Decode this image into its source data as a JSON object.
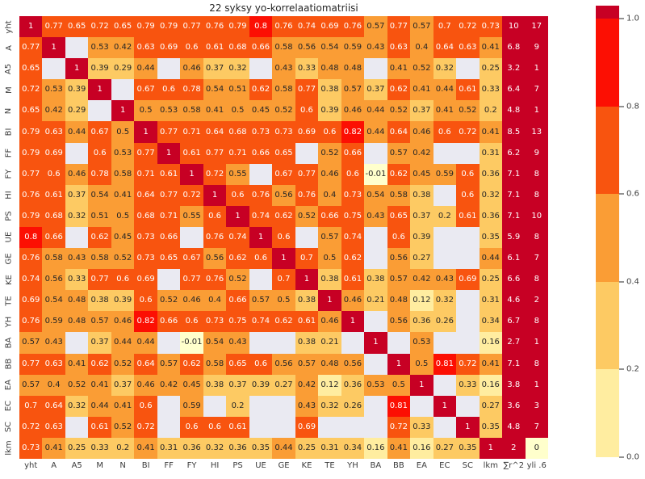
{
  "chart_data": {
    "type": "heatmap",
    "title": "22 syksy yo-korrelaatiomatriisi",
    "rows": [
      "yht",
      "A",
      "A5",
      "M",
      "N",
      "BI",
      "FF",
      "FY",
      "HI",
      "PS",
      "UE",
      "GE",
      "KE",
      "TE",
      "YH",
      "BA",
      "BB",
      "EA",
      "EC",
      "SC",
      "lkm"
    ],
    "columns": [
      "yht",
      "A",
      "A5",
      "M",
      "N",
      "BI",
      "FF",
      "FY",
      "HI",
      "PS",
      "UE",
      "GE",
      "KE",
      "TE",
      "YH",
      "BA",
      "BB",
      "EA",
      "EC",
      "SC",
      "lkm",
      "∑r^2",
      "yli .6"
    ],
    "matrix": [
      [
        1,
        0.77,
        0.65,
        0.72,
        0.65,
        0.79,
        0.79,
        0.77,
        0.76,
        0.79,
        0.8,
        0.76,
        0.74,
        0.69,
        0.76,
        0.57,
        0.77,
        0.57,
        0.7,
        0.72,
        0.73,
        10,
        17
      ],
      [
        0.77,
        1,
        null,
        0.53,
        0.42,
        0.63,
        0.69,
        0.6,
        0.61,
        0.68,
        0.66,
        0.58,
        0.56,
        0.54,
        0.59,
        0.43,
        0.63,
        0.4,
        0.64,
        0.63,
        0.41,
        6.8,
        9
      ],
      [
        0.65,
        null,
        1,
        0.39,
        0.29,
        0.44,
        null,
        0.46,
        0.37,
        0.32,
        null,
        0.43,
        0.33,
        0.48,
        0.48,
        null,
        0.41,
        0.52,
        0.32,
        null,
        0.25,
        3.2,
        1
      ],
      [
        0.72,
        0.53,
        0.39,
        1,
        null,
        0.67,
        0.6,
        0.78,
        0.54,
        0.51,
        0.62,
        0.58,
        0.77,
        0.38,
        0.57,
        0.37,
        0.62,
        0.41,
        0.44,
        0.61,
        0.33,
        6.4,
        7
      ],
      [
        0.65,
        0.42,
        0.29,
        null,
        1,
        0.5,
        0.53,
        0.58,
        0.41,
        0.5,
        0.45,
        0.52,
        0.6,
        0.39,
        0.46,
        0.44,
        0.52,
        0.37,
        0.41,
        0.52,
        0.2,
        4.8,
        1
      ],
      [
        0.79,
        0.63,
        0.44,
        0.67,
        0.5,
        1,
        0.77,
        0.71,
        0.64,
        0.68,
        0.73,
        0.73,
        0.69,
        0.6,
        0.82,
        0.44,
        0.64,
        0.46,
        0.6,
        0.72,
        0.41,
        8.5,
        13
      ],
      [
        0.79,
        0.69,
        null,
        0.6,
        0.53,
        0.77,
        1,
        0.61,
        0.77,
        0.71,
        0.66,
        0.65,
        null,
        0.52,
        0.66,
        null,
        0.57,
        0.42,
        null,
        null,
        0.31,
        6.2,
        9
      ],
      [
        0.77,
        0.6,
        0.46,
        0.78,
        0.58,
        0.71,
        0.61,
        1,
        0.72,
        0.55,
        null,
        0.67,
        0.77,
        0.46,
        0.6,
        -0.01,
        0.62,
        0.45,
        0.59,
        0.6,
        0.36,
        7.1,
        8
      ],
      [
        0.76,
        0.61,
        0.37,
        0.54,
        0.41,
        0.64,
        0.77,
        0.72,
        1,
        0.6,
        0.76,
        0.56,
        0.76,
        0.4,
        0.73,
        0.54,
        0.58,
        0.38,
        null,
        0.6,
        0.32,
        7.1,
        8
      ],
      [
        0.79,
        0.68,
        0.32,
        0.51,
        0.5,
        0.68,
        0.71,
        0.55,
        0.6,
        1,
        0.74,
        0.62,
        0.52,
        0.66,
        0.75,
        0.43,
        0.65,
        0.37,
        0.2,
        0.61,
        0.36,
        7.1,
        10
      ],
      [
        0.8,
        0.66,
        null,
        0.62,
        0.45,
        0.73,
        0.66,
        null,
        0.76,
        0.74,
        1,
        0.6,
        null,
        0.57,
        0.74,
        null,
        0.6,
        0.39,
        null,
        null,
        0.35,
        5.9,
        8
      ],
      [
        0.76,
        0.58,
        0.43,
        0.58,
        0.52,
        0.73,
        0.65,
        0.67,
        0.56,
        0.62,
        0.6,
        1,
        0.7,
        0.5,
        0.62,
        null,
        0.56,
        0.27,
        null,
        null,
        0.44,
        6.1,
        7
      ],
      [
        0.74,
        0.56,
        0.33,
        0.77,
        0.6,
        0.69,
        null,
        0.77,
        0.76,
        0.52,
        null,
        0.7,
        1,
        0.38,
        0.61,
        0.38,
        0.57,
        0.42,
        0.43,
        0.69,
        0.25,
        6.6,
        8
      ],
      [
        0.69,
        0.54,
        0.48,
        0.38,
        0.39,
        0.6,
        0.52,
        0.46,
        0.4,
        0.66,
        0.57,
        0.5,
        0.38,
        1,
        0.46,
        0.21,
        0.48,
        0.12,
        0.32,
        null,
        0.31,
        4.6,
        2
      ],
      [
        0.76,
        0.59,
        0.48,
        0.57,
        0.46,
        0.82,
        0.66,
        0.6,
        0.73,
        0.75,
        0.74,
        0.62,
        0.61,
        0.46,
        1,
        null,
        0.56,
        0.36,
        0.26,
        null,
        0.34,
        6.7,
        8
      ],
      [
        0.57,
        0.43,
        null,
        0.37,
        0.44,
        0.44,
        null,
        -0.01,
        0.54,
        0.43,
        null,
        null,
        0.38,
        0.21,
        null,
        1,
        null,
        0.53,
        null,
        null,
        0.16,
        2.7,
        1
      ],
      [
        0.77,
        0.63,
        0.41,
        0.62,
        0.52,
        0.64,
        0.57,
        0.62,
        0.58,
        0.65,
        0.6,
        0.56,
        0.57,
        0.48,
        0.56,
        null,
        1,
        0.5,
        0.81,
        0.72,
        0.41,
        7.1,
        8
      ],
      [
        0.57,
        0.4,
        0.52,
        0.41,
        0.37,
        0.46,
        0.42,
        0.45,
        0.38,
        0.37,
        0.39,
        0.27,
        0.42,
        0.12,
        0.36,
        0.53,
        0.5,
        1,
        null,
        0.33,
        0.16,
        3.8,
        1
      ],
      [
        0.7,
        0.64,
        0.32,
        0.44,
        0.41,
        0.6,
        null,
        0.59,
        null,
        0.2,
        null,
        null,
        0.43,
        0.32,
        0.26,
        null,
        0.81,
        null,
        1,
        null,
        0.27,
        3.6,
        3
      ],
      [
        0.72,
        0.63,
        null,
        0.61,
        0.52,
        0.72,
        null,
        0.6,
        0.6,
        0.61,
        null,
        null,
        0.69,
        null,
        null,
        null,
        0.72,
        0.33,
        null,
        1,
        0.35,
        4.8,
        7
      ],
      [
        0.73,
        0.41,
        0.25,
        0.33,
        0.2,
        0.41,
        0.31,
        0.36,
        0.32,
        0.36,
        0.35,
        0.44,
        0.25,
        0.31,
        0.34,
        0.16,
        0.41,
        0.16,
        0.27,
        0.35,
        1,
        2,
        0
      ]
    ],
    "colorbar": {
      "ticks": [
        "1.0",
        "0.8",
        "0.6",
        "0.4",
        "0.2",
        "0.0"
      ],
      "range": [
        0,
        1
      ],
      "position": "right"
    },
    "colors": {
      "nan_cell": "#eaeaf2",
      "under": "#ffffcc",
      "bins": [
        "#ffeda0",
        "#fdca63",
        "#fa9d35",
        "#f8540f",
        "#fc0f03"
      ],
      "over": "#c70024",
      "text_dark": "#262626",
      "text_light": "#ffffff"
    },
    "grid": false,
    "xlabel": "",
    "ylabel": ""
  }
}
